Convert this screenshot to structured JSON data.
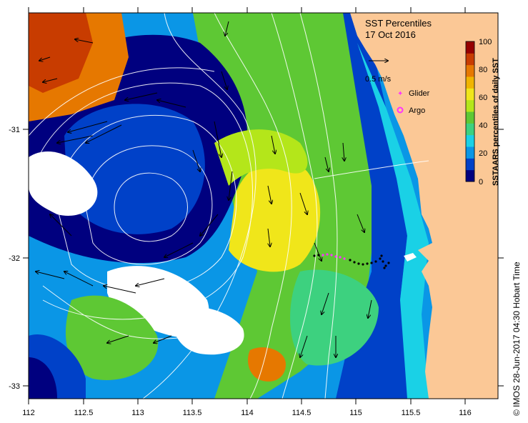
{
  "title": {
    "line1": "SST Percentiles",
    "line2": "17 Oct 2016"
  },
  "axes": {
    "x_ticks": [
      "112",
      "112.5",
      "113",
      "113.5",
      "114",
      "114.5",
      "115",
      "115.5",
      "116"
    ],
    "y_ticks": [
      "-31",
      "-32",
      "-33"
    ]
  },
  "legend": {
    "vector_scale": "0.5 m/s",
    "glider": "Glider",
    "argo": "Argo"
  },
  "colorbar": {
    "title": "SSTAARS percentiles of daily SST",
    "ticks": [
      "0",
      "20",
      "40",
      "60",
      "80",
      "100"
    ],
    "colors": [
      "#00007f",
      "#0041c8",
      "#0a96e6",
      "#1ad1e6",
      "#3dd17f",
      "#5ec834",
      "#b4e61a",
      "#f0e61a",
      "#f0b400",
      "#e67800",
      "#c83c00",
      "#960000"
    ]
  },
  "credit": "© IMOS 28-Jun-2017 04:30 Hobart Time",
  "colors": {
    "land": "#fbc896",
    "no_data": "#ffffff",
    "glider": "#ff33ff",
    "argo": "#ff33ff",
    "contour": "#ffffff",
    "vector": "#000000"
  }
}
